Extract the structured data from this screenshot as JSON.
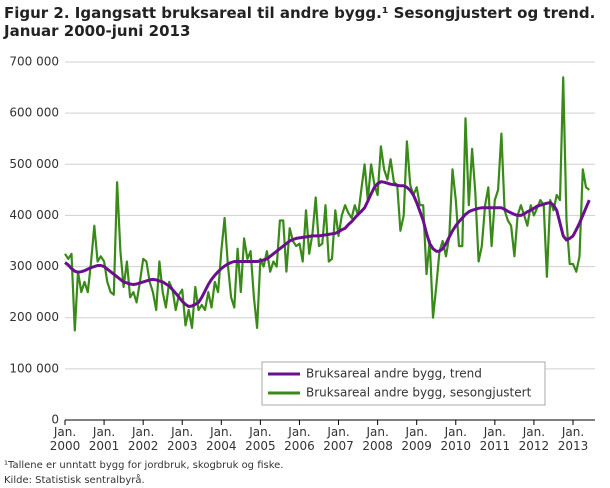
{
  "chart_data": {
    "type": "line",
    "title": [
      "Figur 2. Igangsatt bruksareal til andre bygg.¹ Sesongjustert og trend.",
      "Januar 2000-juni 2013"
    ],
    "notes": [
      "¹Tallene er unntatt bygg for jordbruk, skogbruk og fiske.",
      "Kilde: Statistisk sentralbyrå."
    ],
    "categories": [
      "Jan. 2000",
      null,
      null,
      null,
      null,
      null,
      null,
      null,
      null,
      null,
      null,
      null,
      "Jan. 2001",
      null,
      null,
      null,
      null,
      null,
      null,
      null,
      null,
      null,
      null,
      null,
      "Jan. 2002",
      null,
      null,
      null,
      null,
      null,
      null,
      null,
      null,
      null,
      null,
      null,
      "Jan. 2003",
      null,
      null,
      null,
      null,
      null,
      null,
      null,
      null,
      null,
      null,
      null,
      "Jan. 2004",
      null,
      null,
      null,
      null,
      null,
      null,
      null,
      null,
      null,
      null,
      null,
      "Jan. 2005",
      null,
      null,
      null,
      null,
      null,
      null,
      null,
      null,
      null,
      null,
      null,
      "Jan. 2006",
      null,
      null,
      null,
      null,
      null,
      null,
      null,
      null,
      null,
      null,
      null,
      "Jan. 2007",
      null,
      null,
      null,
      null,
      null,
      null,
      null,
      null,
      null,
      null,
      null,
      "Jan. 2008",
      null,
      null,
      null,
      null,
      null,
      null,
      null,
      null,
      null,
      null,
      null,
      "Jan. 2009",
      null,
      null,
      null,
      null,
      null,
      null,
      null,
      null,
      null,
      null,
      null,
      "Jan. 2010",
      null,
      null,
      null,
      null,
      null,
      null,
      null,
      null,
      null,
      null,
      null,
      "Jan. 2011",
      null,
      null,
      null,
      null,
      null,
      null,
      null,
      null,
      null,
      null,
      null,
      "Jan. 2012",
      null,
      null,
      null,
      null,
      null,
      null,
      null,
      null,
      null,
      null,
      null,
      "Jan. 2013",
      null,
      null,
      null,
      null,
      null
    ],
    "series": [
      {
        "name": "Bruksareal andre bygg, trend",
        "color": "#6a0f8e",
        "values": [
          308000,
          303000,
          296000,
          291000,
          289000,
          290000,
          292000,
          295000,
          298000,
          300000,
          302000,
          302000,
          300000,
          295000,
          290000,
          285000,
          280000,
          275000,
          270000,
          268000,
          266000,
          265000,
          266000,
          268000,
          270000,
          272000,
          274000,
          275000,
          274000,
          272000,
          270000,
          266000,
          262000,
          255000,
          248000,
          240000,
          232000,
          226000,
          222000,
          223000,
          226000,
          230000,
          240000,
          252000,
          265000,
          275000,
          283000,
          290000,
          296000,
          301000,
          305000,
          308000,
          310000,
          310000,
          310000,
          310000,
          310000,
          310000,
          310000,
          310000,
          311000,
          313000,
          315000,
          320000,
          325000,
          330000,
          335000,
          340000,
          345000,
          350000,
          353000,
          355000,
          356000,
          357000,
          358000,
          359000,
          360000,
          360000,
          360000,
          361000,
          362000,
          363000,
          364000,
          365000,
          368000,
          372000,
          375000,
          382000,
          388000,
          395000,
          402000,
          408000,
          415000,
          428000,
          442000,
          455000,
          462000,
          466000,
          465000,
          463000,
          461000,
          460000,
          459000,
          458000,
          458000,
          455000,
          449000,
          440000,
          425000,
          408000,
          390000,
          365000,
          345000,
          335000,
          330000,
          330000,
          335000,
          345000,
          358000,
          370000,
          380000,
          388000,
          395000,
          402000,
          407000,
          410000,
          412000,
          414000,
          415000,
          415000,
          415000,
          415000,
          415000,
          415000,
          415000,
          412000,
          408000,
          405000,
          402000,
          400000,
          400000,
          403000,
          407000,
          410000,
          414000,
          418000,
          420000,
          422000,
          424000,
          425000,
          420000,
          410000,
          385000,
          360000,
          352000,
          355000,
          360000,
          372000,
          385000,
          400000,
          415000,
          430000
        ]
      },
      {
        "name": "Bruksareal andre bygg, sesongjustert",
        "color": "#3a8a1a",
        "values": [
          325000,
          315000,
          325000,
          175000,
          290000,
          250000,
          270000,
          250000,
          310000,
          380000,
          310000,
          320000,
          310000,
          270000,
          250000,
          245000,
          465000,
          330000,
          260000,
          310000,
          240000,
          250000,
          230000,
          270000,
          315000,
          310000,
          270000,
          250000,
          215000,
          310000,
          250000,
          220000,
          270000,
          255000,
          215000,
          245000,
          255000,
          185000,
          215000,
          180000,
          260000,
          215000,
          225000,
          215000,
          250000,
          220000,
          270000,
          250000,
          330000,
          395000,
          305000,
          240000,
          220000,
          335000,
          250000,
          355000,
          315000,
          330000,
          240000,
          180000,
          315000,
          300000,
          330000,
          290000,
          310000,
          300000,
          390000,
          390000,
          290000,
          375000,
          350000,
          340000,
          345000,
          310000,
          410000,
          325000,
          365000,
          435000,
          340000,
          345000,
          420000,
          310000,
          315000,
          410000,
          360000,
          400000,
          420000,
          405000,
          395000,
          420000,
          400000,
          450000,
          500000,
          430000,
          500000,
          460000,
          440000,
          535000,
          490000,
          470000,
          510000,
          465000,
          460000,
          370000,
          400000,
          545000,
          460000,
          440000,
          455000,
          420000,
          420000,
          285000,
          350000,
          200000,
          260000,
          330000,
          350000,
          320000,
          360000,
          490000,
          430000,
          340000,
          340000,
          590000,
          420000,
          530000,
          445000,
          310000,
          340000,
          420000,
          455000,
          340000,
          430000,
          450000,
          560000,
          410000,
          390000,
          380000,
          320000,
          400000,
          420000,
          400000,
          380000,
          420000,
          400000,
          415000,
          430000,
          420000,
          280000,
          430000,
          410000,
          440000,
          430000,
          670000,
          390000,
          305000,
          305000,
          290000,
          320000,
          490000,
          455000,
          450000
        ]
      }
    ],
    "ylim": [
      0,
      700000
    ],
    "yticks": [
      0,
      {
        "value": 100000,
        "label": "100 000"
      },
      {
        "value": 200000,
        "label": "200 000"
      },
      {
        "value": 300000,
        "label": "300 000"
      },
      {
        "value": 400000,
        "label": "400 000"
      },
      {
        "value": 500000,
        "label": "500 000"
      },
      {
        "value": 600000,
        "label": "600 000"
      },
      {
        "value": 700000,
        "label": "700 000"
      }
    ],
    "grid": true,
    "legend": "lower right"
  }
}
